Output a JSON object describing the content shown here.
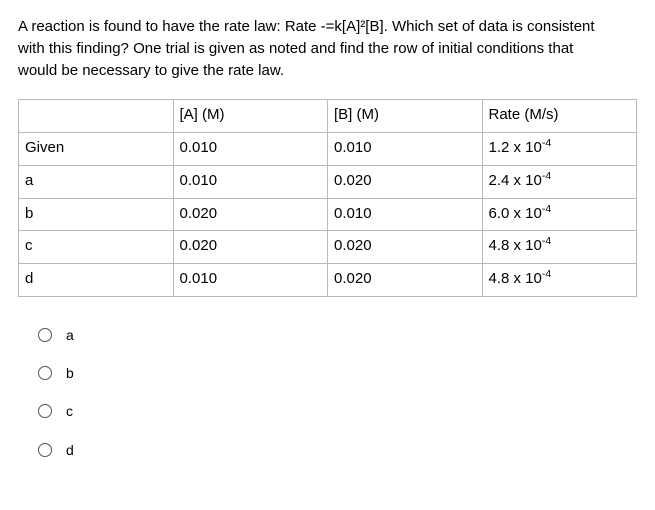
{
  "question": {
    "line1": "A reaction is found to have the rate law: Rate -=k[A]²[B].  Which set of data is consistent",
    "line2": "with this finding?   One trial is given as noted and find the row of initial conditions that",
    "line3": "would be necessary to give the rate law."
  },
  "table": {
    "headers": {
      "c1": "",
      "c2": "[A] (M)",
      "c3": "[B] (M)",
      "c4": "Rate (M/s)"
    },
    "rows": [
      {
        "c1": "Given",
        "c2": "0.010",
        "c3": "0.010",
        "c4_base": "1.2 x 10",
        "c4_exp": "-4"
      },
      {
        "c1": "a",
        "c2": "0.010",
        "c3": "0.020",
        "c4_base": "2.4 x 10",
        "c4_exp": "-4"
      },
      {
        "c1": "b",
        "c2": "0.020",
        "c3": "0.010",
        "c4_base": "6.0 x 10",
        "c4_exp": "-4"
      },
      {
        "c1": "c",
        "c2": "0.020",
        "c3": "0.020",
        "c4_base": "4.8 x 10",
        "c4_exp": "-4"
      },
      {
        "c1": "d",
        "c2": "0.010",
        "c3": "0.020",
        "c4_base": "4.8 x 10",
        "c4_exp": "-4"
      }
    ]
  },
  "options": [
    {
      "label": "a"
    },
    {
      "label": "b"
    },
    {
      "label": "c"
    },
    {
      "label": "d"
    }
  ],
  "colors": {
    "text": "#000000",
    "border": "#b8b8b8",
    "radio_border": "#555555",
    "background": "#ffffff"
  }
}
